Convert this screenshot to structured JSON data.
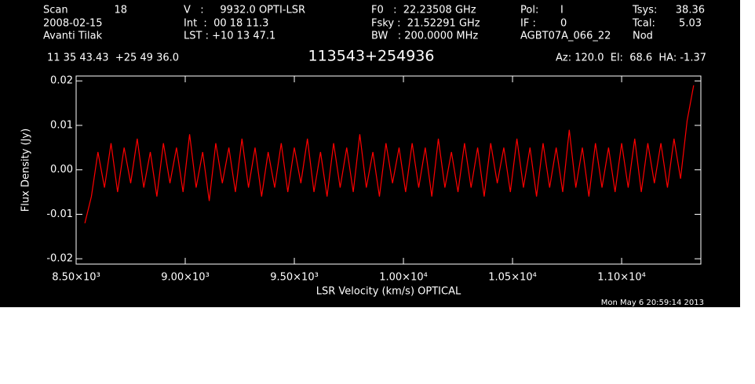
{
  "header": {
    "scan_label": "Scan",
    "scan": "18",
    "date": "2008-02-15",
    "observer": "Avanti Tilak",
    "velocity": "V   :     9932.0 OPTI-LSR",
    "int": "Int  :  00 18 11.3",
    "lst": "LST : +10 13 47.1",
    "f0": "F0   :  22.23508 GHz",
    "fsky": "Fsky :  21.52291 GHz",
    "bw": "BW   : 200.0000 MHz",
    "pol_label": "Pol:",
    "pol": "I",
    "if_label": "IF :",
    "if": "0",
    "project": "AGBT07A_066_22",
    "tsys_label": "Tsys:",
    "tsys": "38.36",
    "tcal_label": "Tcal:",
    "tcal": "5.03",
    "proc": "Nod",
    "coords": "11 35 43.43  +25 49 36.0",
    "pointing": "Az: 120.0  El:  68.6  HA: -1.37",
    "timestamp": "Mon May  6 20:59:14 2013"
  },
  "chart_data": {
    "type": "line",
    "title": "113543+254936",
    "x_label": "LSR Velocity (km/s) OPTICAL",
    "y_label": "Flux Density (Jy)",
    "x": [
      8540,
      8570,
      8600,
      8630,
      8660,
      8690,
      8720,
      8750,
      8780,
      8810,
      8840,
      8870,
      8900,
      8930,
      8960,
      8990,
      9020,
      9050,
      9080,
      9110,
      9140,
      9170,
      9200,
      9230,
      9260,
      9290,
      9320,
      9350,
      9380,
      9410,
      9440,
      9470,
      9500,
      9530,
      9560,
      9590,
      9620,
      9650,
      9680,
      9710,
      9740,
      9770,
      9800,
      9830,
      9860,
      9890,
      9920,
      9950,
      9980,
      10010,
      10040,
      10070,
      10100,
      10130,
      10160,
      10190,
      10220,
      10250,
      10280,
      10310,
      10340,
      10370,
      10400,
      10430,
      10460,
      10490,
      10520,
      10550,
      10580,
      10610,
      10640,
      10670,
      10700,
      10730,
      10760,
      10790,
      10820,
      10850,
      10880,
      10910,
      10940,
      10970,
      11000,
      11030,
      11060,
      11090,
      11120,
      11150,
      11180,
      11210,
      11240,
      11270,
      11300,
      11330
    ],
    "series": [
      {
        "name": "Spectrum",
        "color": "#ff0000",
        "values": [
          -0.012,
          -0.006,
          0.004,
          -0.004,
          0.006,
          -0.005,
          0.005,
          -0.003,
          0.007,
          -0.004,
          0.004,
          -0.006,
          0.006,
          -0.003,
          0.005,
          -0.005,
          0.008,
          -0.004,
          0.004,
          -0.007,
          0.006,
          -0.003,
          0.005,
          -0.005,
          0.007,
          -0.004,
          0.005,
          -0.006,
          0.004,
          -0.004,
          0.006,
          -0.005,
          0.005,
          -0.003,
          0.007,
          -0.005,
          0.004,
          -0.006,
          0.006,
          -0.004,
          0.005,
          -0.005,
          0.008,
          -0.004,
          0.004,
          -0.006,
          0.006,
          -0.003,
          0.005,
          -0.005,
          0.006,
          -0.004,
          0.005,
          -0.006,
          0.007,
          -0.004,
          0.004,
          -0.005,
          0.006,
          -0.004,
          0.005,
          -0.006,
          0.006,
          -0.003,
          0.005,
          -0.005,
          0.007,
          -0.004,
          0.005,
          -0.006,
          0.006,
          -0.004,
          0.005,
          -0.005,
          0.009,
          -0.004,
          0.005,
          -0.006,
          0.006,
          -0.004,
          0.005,
          -0.005,
          0.006,
          -0.004,
          0.007,
          -0.005,
          0.006,
          -0.003,
          0.006,
          -0.004,
          0.007,
          -0.002,
          0.011,
          0.019
        ]
      }
    ],
    "xlim": [
      8500,
      11363
    ],
    "ylim": [
      -0.0212,
      0.0211
    ],
    "xticks": [
      {
        "value": 8500,
        "label": "8.50×10³"
      },
      {
        "value": 9000,
        "label": "9.00×10³"
      },
      {
        "value": 9500,
        "label": "9.50×10³"
      },
      {
        "value": 10000,
        "label": "1.00×10⁴"
      },
      {
        "value": 10500,
        "label": "1.05×10⁴"
      },
      {
        "value": 11000,
        "label": "1.10×10⁴"
      }
    ],
    "yticks": [
      -0.02,
      -0.01,
      {
        "value": 0,
        "label": "0.00"
      },
      0.01,
      0.02
    ]
  }
}
